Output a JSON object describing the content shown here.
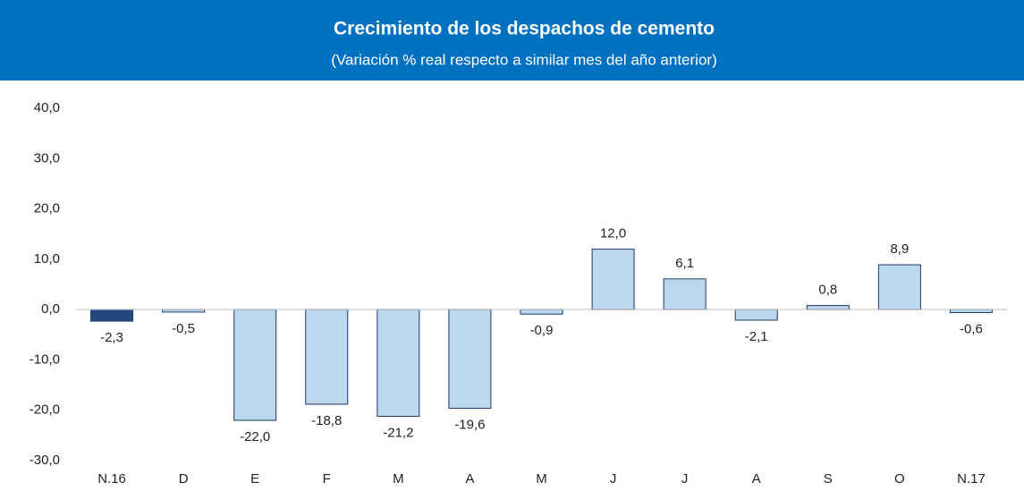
{
  "chart_data": {
    "type": "bar",
    "title": "Crecimiento de los despachos de cemento",
    "subtitle": "(Variación % real respecto a similar mes del año anterior)",
    "categories": [
      "N.16",
      "D",
      "E",
      "F",
      "M",
      "A",
      "M",
      "J",
      "J",
      "A",
      "S",
      "O",
      "N.17"
    ],
    "values": [
      -2.3,
      -0.5,
      -22.0,
      -18.8,
      -21.2,
      -19.6,
      -0.9,
      12.0,
      6.1,
      -2.1,
      0.8,
      8.9,
      -0.6
    ],
    "value_labels": [
      "-2,3",
      "-0,5",
      "-22,0",
      "-18,8",
      "-21,2",
      "-19,6",
      "-0,9",
      "12,0",
      "6,1",
      "-2,1",
      "0,8",
      "8,9",
      "-0,6"
    ],
    "colors": [
      "#24497e",
      "#bdd7ee",
      "#bdd7ee",
      "#bdd7ee",
      "#bdd7ee",
      "#bdd7ee",
      "#bdd7ee",
      "#bdd7ee",
      "#bdd7ee",
      "#bdd7ee",
      "#bdd7ee",
      "#bdd7ee",
      "#bdd7ee"
    ],
    "border_color": "#1f3864",
    "header_color": "#0070c0",
    "ylim": [
      -30,
      40
    ],
    "yticks": [
      {
        "value": -30,
        "label": "-30,0"
      },
      {
        "value": -20,
        "label": "-20,0"
      },
      {
        "value": -10,
        "label": "-10,0"
      },
      {
        "value": 0,
        "label": "0,0"
      },
      {
        "value": 10,
        "label": "10,0"
      },
      {
        "value": 20,
        "label": "20,0"
      },
      {
        "value": 30,
        "label": "30,0"
      },
      {
        "value": 40,
        "label": "40,0"
      }
    ],
    "grid": false
  }
}
